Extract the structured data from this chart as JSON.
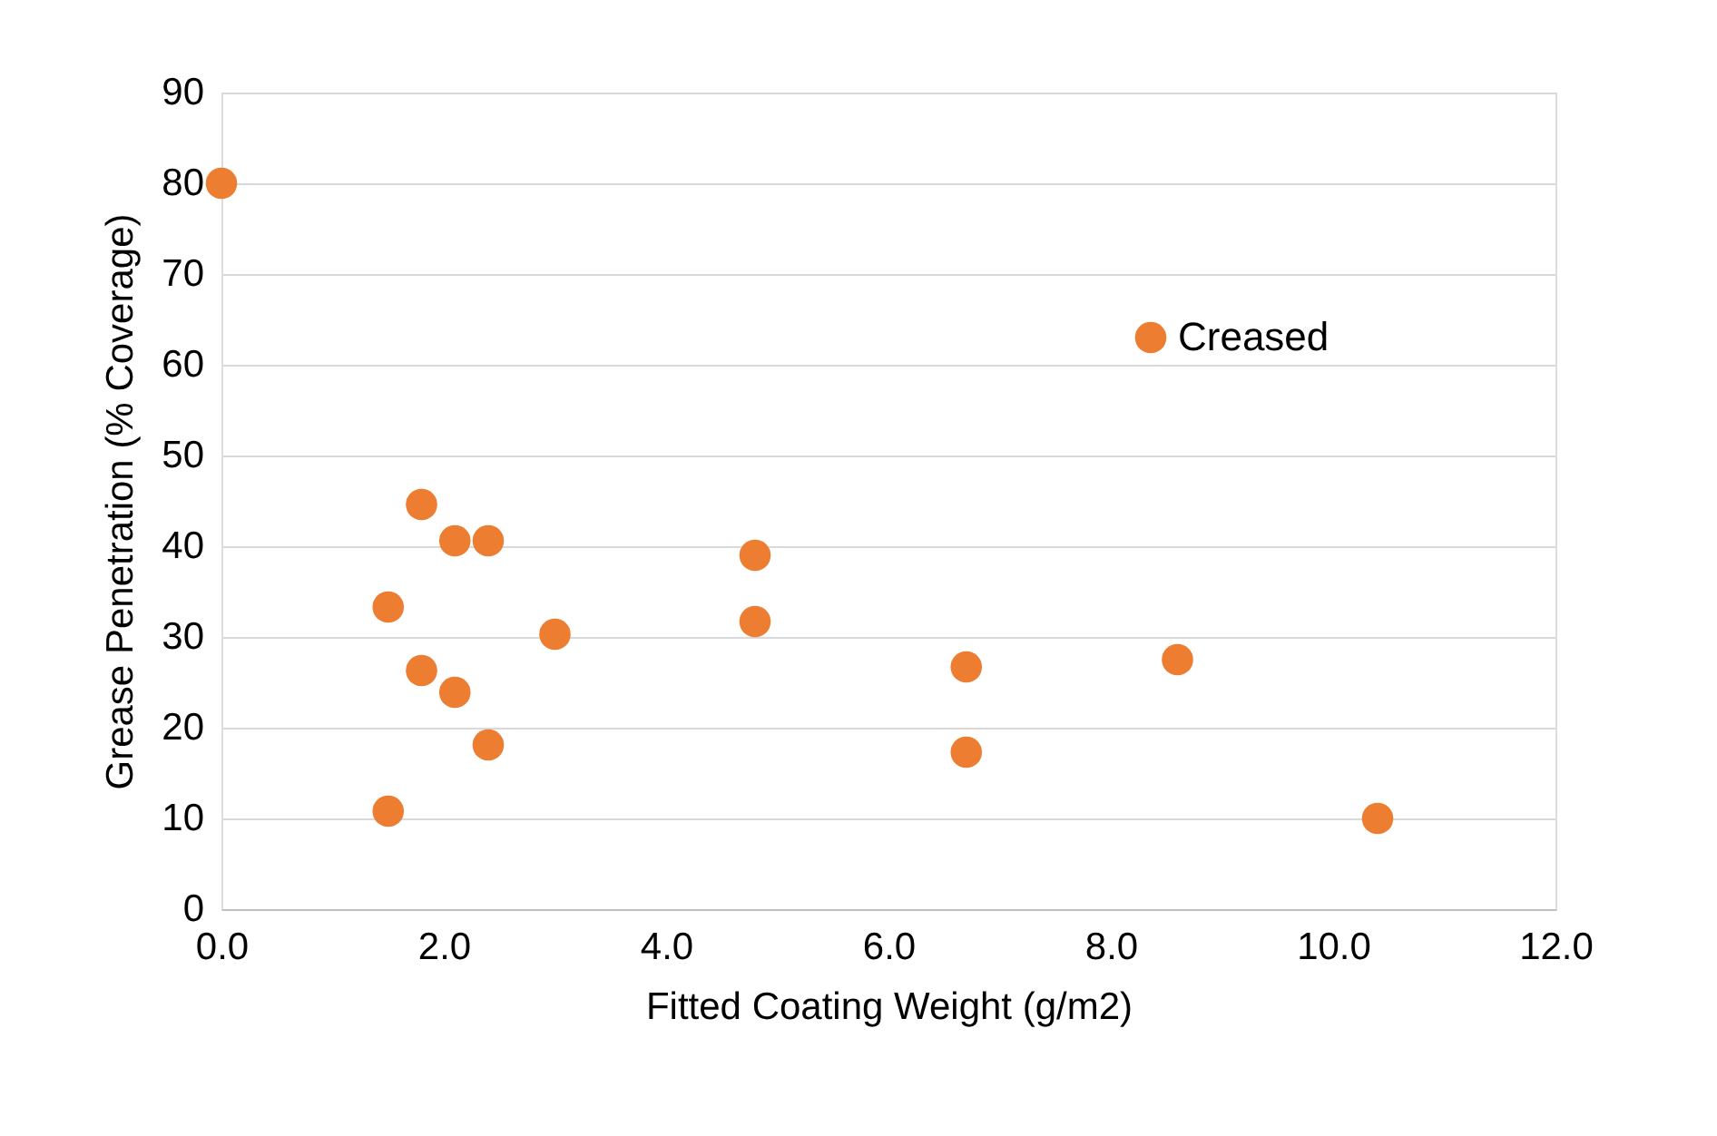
{
  "chart_data": {
    "type": "scatter",
    "xlabel": "Fitted Coating Weight (g/m2)",
    "ylabel": "Grease Penetration (% Coverage)",
    "series": [
      {
        "name": "Creased",
        "color": "#ed7d31",
        "x": [
          0.0,
          1.8,
          2.1,
          2.4,
          1.5,
          1.8,
          2.1,
          2.4,
          1.5,
          3.0,
          4.8,
          4.8,
          6.7,
          6.7,
          8.6,
          10.4
        ],
        "values": [
          80,
          44.6,
          40.6,
          40.6,
          33.3,
          26.3,
          23.9,
          18.1,
          10.8,
          30.3,
          39.0,
          31.7,
          26.7,
          17.3,
          27.5,
          10.0
        ]
      }
    ],
    "xlim": [
      0,
      12
    ],
    "ylim": [
      0,
      90
    ],
    "xticks": [
      {
        "value": 0,
        "label": "0.0"
      },
      {
        "value": 2,
        "label": "2.0"
      },
      {
        "value": 4,
        "label": "4.0"
      },
      {
        "value": 6,
        "label": "6.0"
      },
      {
        "value": 8,
        "label": "8.0"
      },
      {
        "value": 10,
        "label": "10.0"
      },
      {
        "value": 12,
        "label": "12.0"
      }
    ],
    "yticks": [
      0,
      10,
      20,
      30,
      40,
      50,
      60,
      70,
      80,
      90
    ],
    "grid": "y",
    "legend": "top right",
    "marker": "circle"
  }
}
